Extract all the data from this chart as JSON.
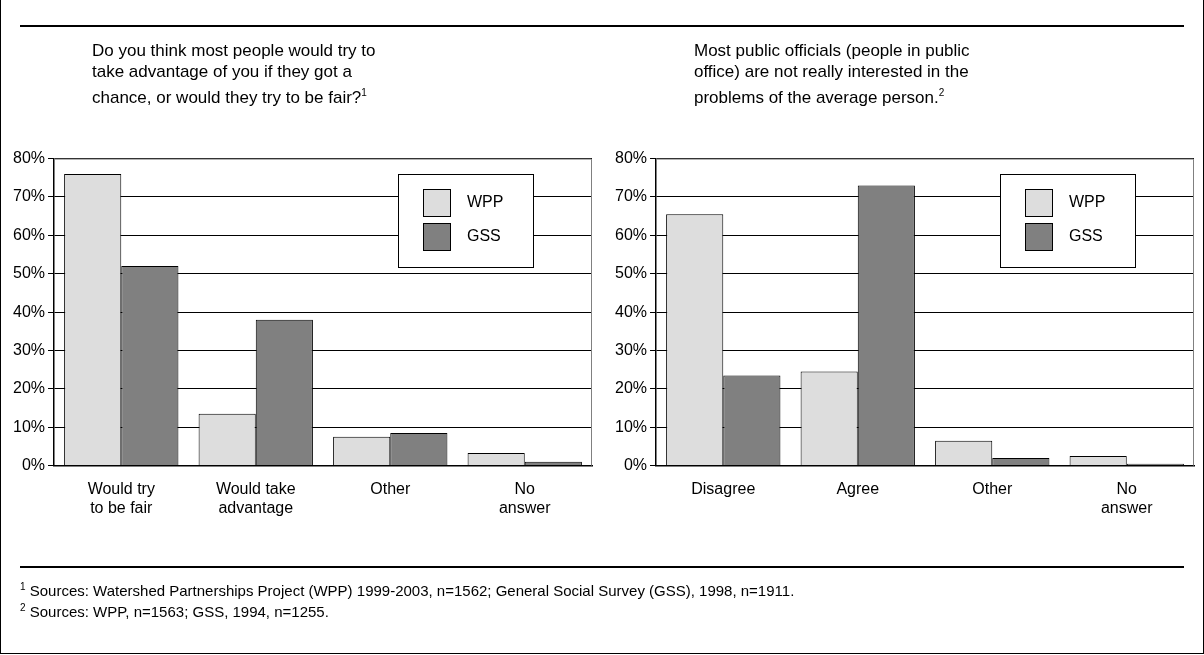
{
  "chart_data": [
    {
      "type": "bar",
      "title": "Do you think most people would try to take advantage of you if they got a chance, or would they try to be fair?$^{1}$",
      "categories": [
        "Would try\nto be fair",
        "Would take\nadvantage",
        "Other",
        "No\nanswer"
      ],
      "series": [
        {
          "name": "WPP",
          "color": "#dddddd",
          "values": [
            76,
            13.5,
            7.5,
            3.3
          ]
        },
        {
          "name": "GSS",
          "color": "#808080",
          "values": [
            52,
            38,
            8.5,
            1
          ]
        }
      ],
      "ylim": [
        0,
        80
      ],
      "yticks": [
        {
          "value": 0,
          "label": "0%"
        },
        {
          "value": 10,
          "label": "10%"
        },
        {
          "value": 20,
          "label": "20%"
        },
        {
          "value": 30,
          "label": "30%"
        },
        {
          "value": 40,
          "label": "40%"
        },
        {
          "value": 50,
          "label": "50%"
        },
        {
          "value": 60,
          "label": "60%"
        },
        {
          "value": 70,
          "label": "70%"
        },
        {
          "value": 80,
          "label": "80%"
        }
      ],
      "grid": "y",
      "legend": "top right",
      "annotations": [
        "$^{1}$ Sources: Watershed Partnerships Project (WPP) 1999-2003, n=1562; General Social Survey (GSS), 1998, n=1911."
      ]
    },
    {
      "type": "bar",
      "title": "Most public officials (people in public office) are not really interested in the problems of the average person.$^{2}$",
      "categories": [
        "Disagree",
        "Agree",
        "Other",
        "No\nanswer"
      ],
      "series": [
        {
          "name": "WPP",
          "color": "#dddddd",
          "values": [
            65.5,
            24.5,
            6.5,
            2.5
          ]
        },
        {
          "name": "GSS",
          "color": "#808080",
          "values": [
            23.5,
            73,
            2,
            0.5
          ]
        }
      ],
      "ylim": [
        0,
        80
      ],
      "yticks": [
        {
          "value": 0,
          "label": "0%"
        },
        {
          "value": 10,
          "label": "10%"
        },
        {
          "value": 20,
          "label": "20%"
        },
        {
          "value": 30,
          "label": "30%"
        },
        {
          "value": 40,
          "label": "40%"
        },
        {
          "value": 50,
          "label": "50%"
        },
        {
          "value": 60,
          "label": "60%"
        },
        {
          "value": 70,
          "label": "70%"
        },
        {
          "value": 80,
          "label": "80%"
        }
      ],
      "grid": "y",
      "legend": "top right",
      "annotations": [
        "$^{2}$ Sources: WPP, n=1563; GSS, 1994, n=1255."
      ]
    }
  ]
}
